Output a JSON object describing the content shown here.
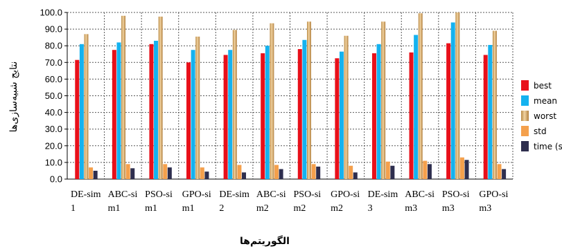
{
  "chart_data": {
    "type": "bar",
    "xlabel": "الگوریتم‌ها",
    "ylabel": "نتایج شبیه‌سازی‌ها",
    "ylim": [
      0,
      100
    ],
    "yticks": [
      "0.0",
      "10.0",
      "20.0",
      "30.0",
      "40.0",
      "50.0",
      "60.0",
      "70.0",
      "80.0",
      "90.0",
      "100.0"
    ],
    "grid": true,
    "legend_position": "right",
    "categories": [
      [
        "DE-sim",
        "1"
      ],
      [
        "ABC-si",
        "m1"
      ],
      [
        "PSO-si",
        "m1"
      ],
      [
        "GPO-si",
        "m1"
      ],
      [
        "DE-sim",
        "2"
      ],
      [
        "ABC-si",
        "m2"
      ],
      [
        "PSO-si",
        "m2"
      ],
      [
        "GPO-si",
        "m2"
      ],
      [
        "DE-sim",
        "3"
      ],
      [
        "ABC-si",
        "m3"
      ],
      [
        "PSO-si",
        "m3"
      ],
      [
        "GPO-si",
        "m3"
      ]
    ],
    "series": [
      {
        "name": "best",
        "color": "#e8101a",
        "values": [
          71.5,
          77.5,
          81.0,
          70.0,
          74.5,
          75.5,
          78.0,
          72.5,
          75.5,
          76.0,
          81.5,
          74.5
        ]
      },
      {
        "name": "mean",
        "color": "#14b2ef",
        "values": [
          81.0,
          82.0,
          83.0,
          77.5,
          77.5,
          80.0,
          83.5,
          76.5,
          81.0,
          86.5,
          94.0,
          80.5
        ]
      },
      {
        "name": "worst",
        "color": "#d8a868",
        "values": [
          87.0,
          98.0,
          97.5,
          85.5,
          89.5,
          93.5,
          94.5,
          86.0,
          94.5,
          99.5,
          100.0,
          89.0
        ]
      },
      {
        "name": "std",
        "color": "#f4a04c",
        "values": [
          7.0,
          9.0,
          9.0,
          7.0,
          8.5,
          8.5,
          9.0,
          8.0,
          10.5,
          11.0,
          13.0,
          9.0
        ]
      },
      {
        "name": "time (s)",
        "color": "#2e2e4e",
        "values": [
          5.0,
          6.5,
          7.0,
          4.5,
          4.0,
          6.0,
          7.5,
          4.0,
          8.0,
          9.0,
          11.5,
          6.0
        ]
      }
    ]
  }
}
